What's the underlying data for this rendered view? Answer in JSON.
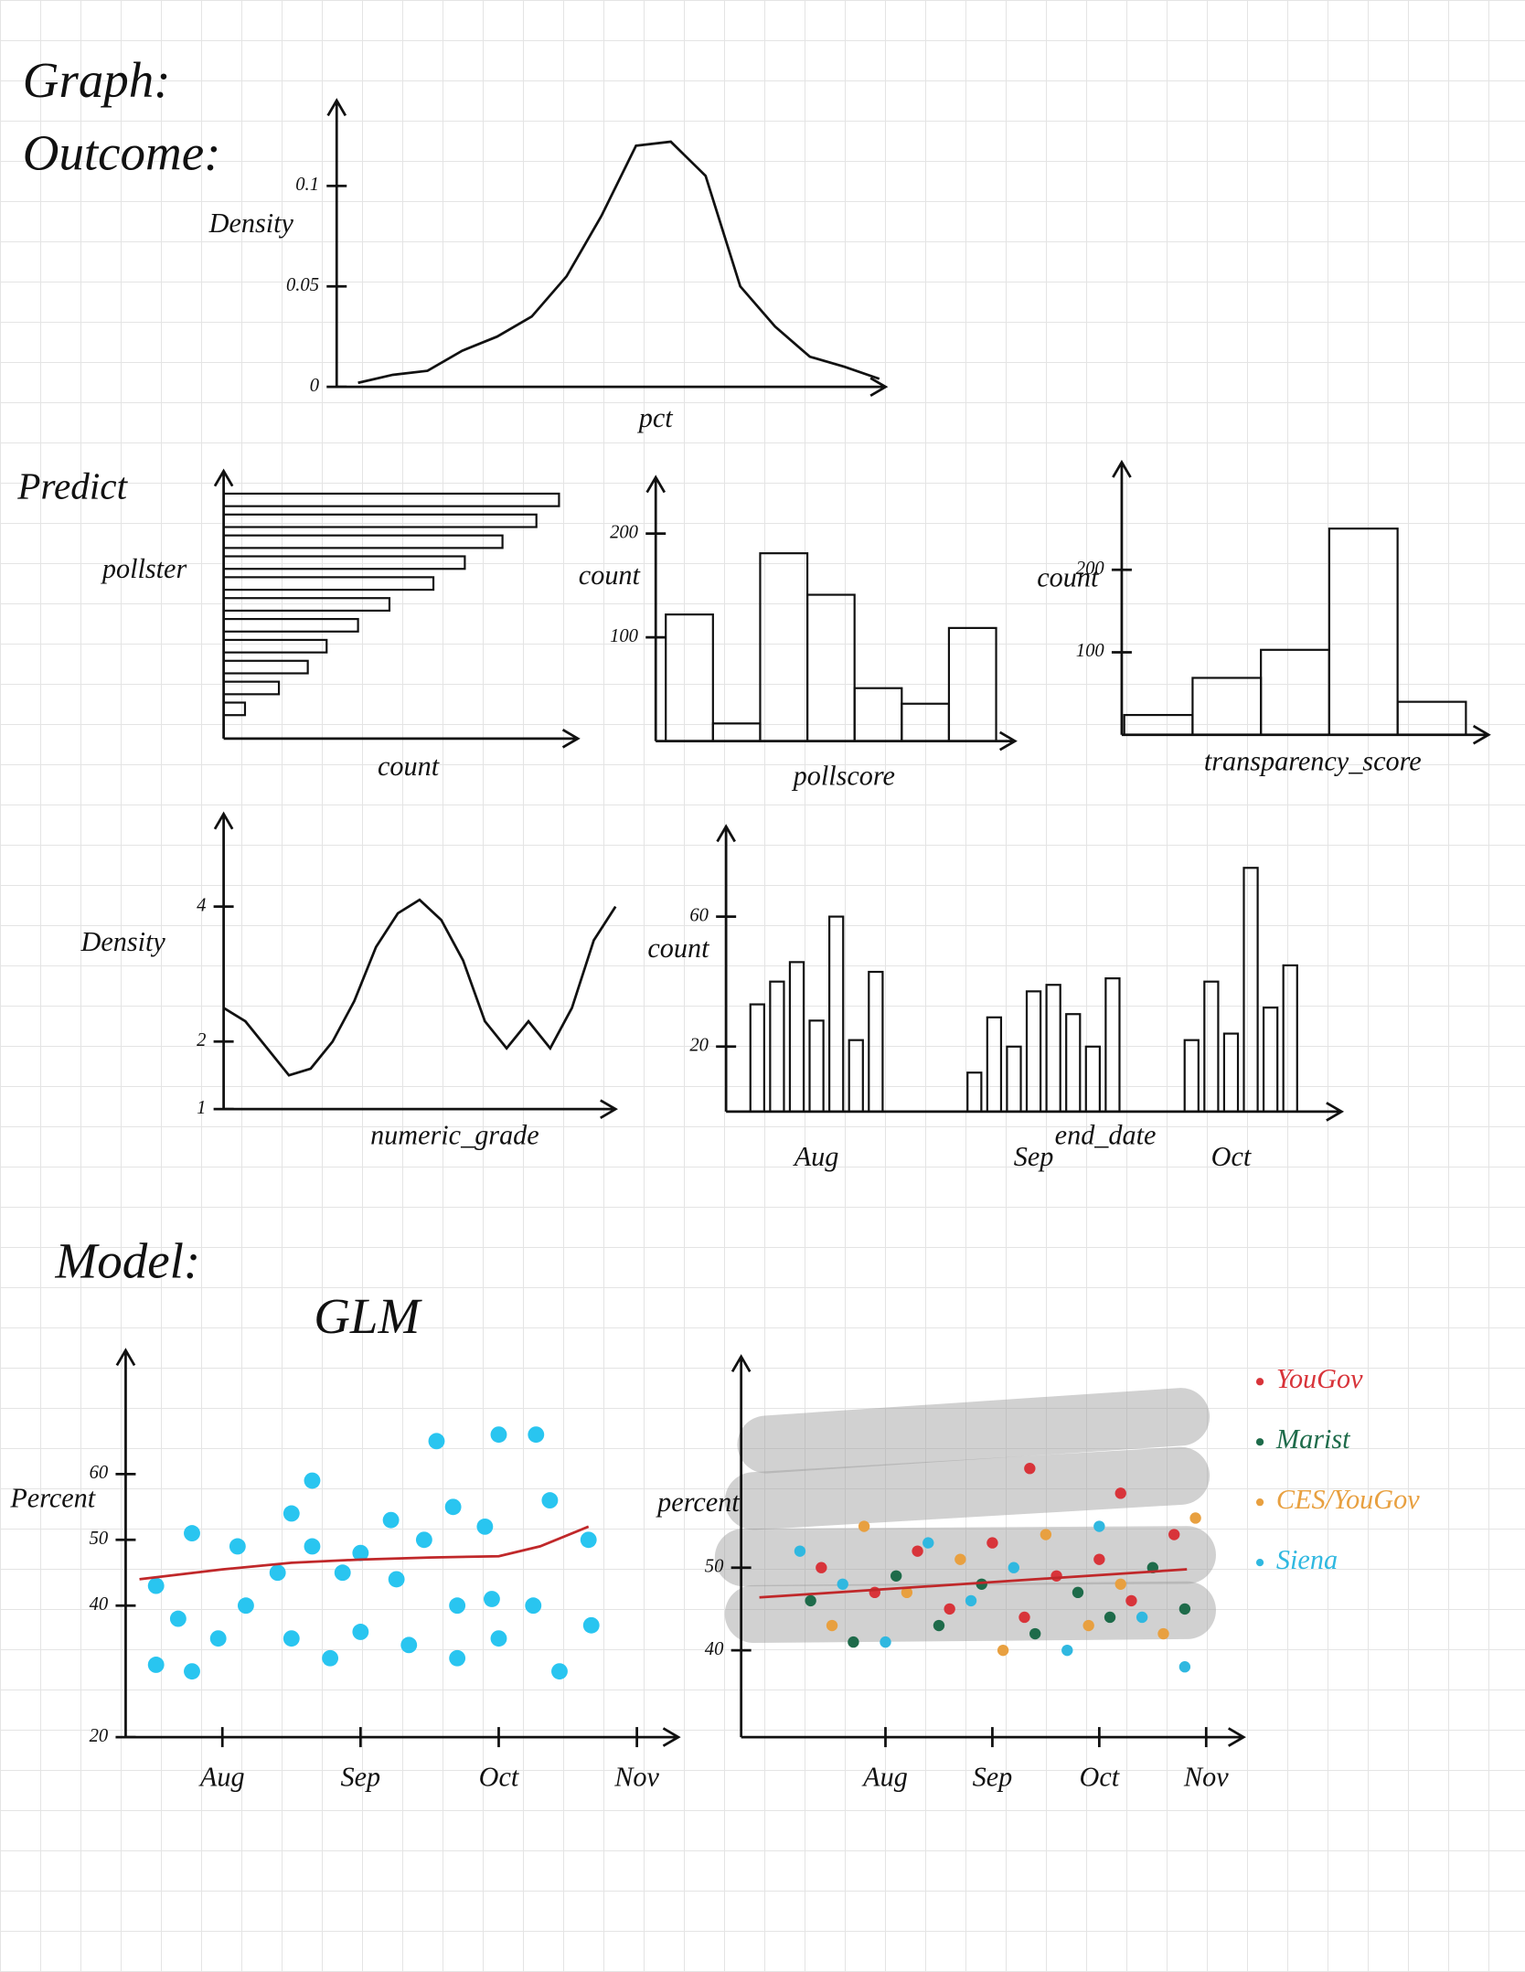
{
  "headings": [
    "Graph:",
    "Outcome:",
    "Predict",
    "Model:"
  ],
  "chart_data": [
    {
      "type": "line",
      "ylabel": "Density",
      "xlabel": "pct",
      "values": [
        0.002,
        0.006,
        0.008,
        0.018,
        0.025,
        0.035,
        0.055,
        0.085,
        0.12,
        0.122,
        0.105,
        0.05,
        0.03,
        0.015,
        0.01,
        0.004
      ],
      "ylim": [
        0,
        0.13
      ],
      "yticks": [
        0,
        0.05,
        0.1
      ]
    },
    {
      "type": "barh",
      "ylabel": "pollster",
      "xlabel": "count",
      "values": [
        267,
        249,
        222,
        192,
        167,
        132,
        107,
        82,
        67,
        44,
        17
      ],
      "xlim": [
        0,
        282
      ]
    },
    {
      "type": "bar",
      "ylabel": "count",
      "xlabel": "pollscore",
      "values": [
        122,
        17,
        181,
        141,
        51,
        36,
        109
      ],
      "ylim": [
        0,
        230
      ],
      "yticks": [
        100,
        200
      ]
    },
    {
      "type": "bar",
      "ylabel": "count",
      "xlabel": "transparency_score",
      "values": [
        24,
        69,
        103,
        250,
        40
      ],
      "ylim": [
        0,
        300
      ],
      "yticks": [
        100,
        200
      ]
    },
    {
      "type": "line",
      "ylabel": "Density",
      "xlabel": "numeric_grade",
      "values": [
        2.5,
        2.3,
        1.9,
        1.5,
        1.6,
        2.0,
        2.6,
        3.4,
        3.9,
        4.1,
        3.8,
        3.2,
        2.3,
        1.9,
        2.3,
        1.9,
        2.5,
        3.5,
        4.0
      ],
      "ylim": [
        1,
        5
      ],
      "yticks": [
        1,
        2,
        4
      ]
    },
    {
      "type": "bar",
      "ylabel": "count",
      "xlabel": "end_date",
      "categories": [
        null,
        null,
        null,
        "Aug",
        null,
        null,
        null,
        null,
        null,
        null,
        null,
        null,
        null,
        null,
        "Sep",
        null,
        null,
        null,
        null,
        null,
        null,
        null,
        null,
        null,
        "Oct",
        null,
        null,
        null
      ],
      "values": [
        33,
        40,
        46,
        28,
        60,
        22,
        43,
        null,
        null,
        null,
        null,
        12,
        29,
        20,
        37,
        39,
        30,
        20,
        41,
        null,
        null,
        null,
        22,
        40,
        24,
        75,
        32,
        45
      ],
      "ylim": [
        0,
        80
      ],
      "yticks": [
        20,
        60
      ]
    },
    {
      "type": "scatter",
      "title": "GLM",
      "ylabel": "Percent",
      "xlim": [
        7.3,
        11.3
      ],
      "xticks": [
        {
          "value": 8,
          "label": "Aug"
        },
        {
          "value": 9,
          "label": "Sep"
        },
        {
          "value": 10,
          "label": "Oct"
        },
        {
          "value": 11,
          "label": "Nov"
        }
      ],
      "ylim": [
        20,
        75
      ],
      "yticks": [
        20,
        40,
        50,
        60
      ],
      "series": [
        {
          "color": "#29c5f0",
          "x": [
            7.52,
            7.78,
            7.52,
            7.78,
            7.68,
            8.11,
            7.97,
            8.17,
            8.4,
            8.65,
            8.5,
            8.5,
            8.65,
            8.87,
            9.0,
            8.78,
            9.0,
            9.22,
            9.26,
            9.35,
            9.46,
            9.55,
            9.67,
            9.7,
            9.7,
            9.9,
            9.95,
            10.0,
            10.0,
            10.27,
            10.25,
            10.37,
            10.44,
            10.65,
            10.67
          ],
          "values": [
            43,
            51,
            31,
            30,
            38,
            49,
            35,
            40,
            45,
            59,
            54,
            35,
            49,
            45,
            48,
            32,
            36,
            53,
            44,
            34,
            50,
            65,
            55,
            40,
            32,
            52,
            41,
            35,
            66,
            66,
            40,
            56,
            30,
            50,
            37
          ]
        },
        {
          "type": "line",
          "color": "#c0282a",
          "x": [
            7.4,
            8,
            8.5,
            9,
            9.5,
            10,
            10.3,
            10.65
          ],
          "values": [
            44,
            45.5,
            46.5,
            47,
            47.3,
            47.5,
            49,
            52
          ]
        }
      ]
    },
    {
      "type": "scatter",
      "ylabel": "percent",
      "xlim": [
        6.65,
        11.35
      ],
      "xticks": [
        {
          "value": 8,
          "label": "Aug"
        },
        {
          "value": 9,
          "label": "Sep"
        },
        {
          "value": 10,
          "label": "Oct"
        },
        {
          "value": 11,
          "label": "Nov"
        }
      ],
      "ylim": [
        29.5,
        72.5
      ],
      "yticks": [
        40,
        50
      ],
      "legend": "right",
      "series": [
        {
          "name": "YouGov",
          "color": "#d8343a",
          "x": [
            7.4,
            7.9,
            8.3,
            8.6,
            9.0,
            9.3,
            9.6,
            10.0,
            10.3,
            10.7,
            9.35,
            10.2
          ],
          "values": [
            50,
            47,
            52,
            45,
            53,
            44,
            49,
            51,
            46,
            54,
            62,
            59
          ]
        },
        {
          "name": "Marist",
          "color": "#1e6b4a",
          "x": [
            7.3,
            7.7,
            8.1,
            8.5,
            8.9,
            9.4,
            9.8,
            10.1,
            10.5,
            10.8
          ],
          "values": [
            46,
            41,
            49,
            43,
            48,
            42,
            47,
            44,
            50,
            45
          ]
        },
        {
          "name": "CES/YouGov",
          "color": "#e8a040",
          "x": [
            7.5,
            7.8,
            8.2,
            8.7,
            9.1,
            9.5,
            9.9,
            10.2,
            10.6,
            10.9
          ],
          "values": [
            43,
            55,
            47,
            51,
            40,
            54,
            43,
            48,
            42,
            56
          ]
        },
        {
          "name": "Siena",
          "color": "#30b8e0",
          "x": [
            7.2,
            7.6,
            8.0,
            8.4,
            8.8,
            9.2,
            9.7,
            10.0,
            10.4,
            10.8
          ],
          "values": [
            52,
            48,
            41,
            53,
            46,
            50,
            40,
            55,
            44,
            38
          ]
        },
        {
          "type": "line",
          "color": "#c0282a",
          "x": [
            6.82,
            10.82
          ],
          "values": [
            46.4,
            49.8
          ]
        }
      ]
    }
  ]
}
